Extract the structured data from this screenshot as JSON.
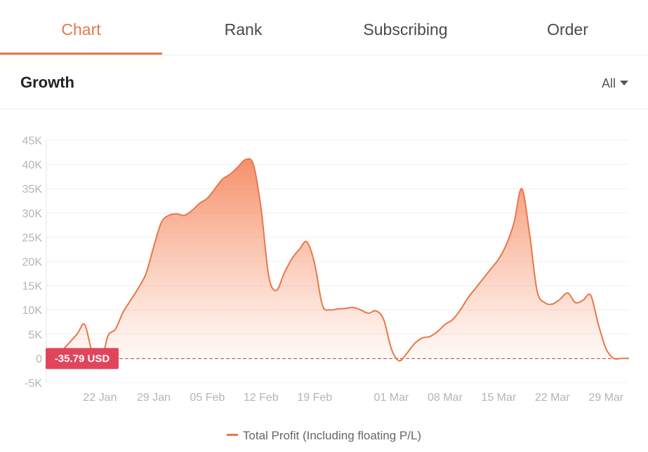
{
  "tabs": [
    {
      "label": "Chart",
      "active": true
    },
    {
      "label": "Rank",
      "active": false
    },
    {
      "label": "Subscribing",
      "active": false
    },
    {
      "label": "Order",
      "active": false
    }
  ],
  "section": {
    "title": "Growth",
    "range_selected": "All"
  },
  "colors": {
    "accent": "#e8774a",
    "badge": "#e0455c",
    "zero_line": "#c0646c"
  },
  "chart_data": {
    "type": "area",
    "title": "",
    "xlabel": "",
    "ylabel": "",
    "grid": true,
    "legend_position": "bottom",
    "ylim": [
      -5000,
      45000
    ],
    "y_ticks": [
      -5000,
      0,
      5000,
      10000,
      15000,
      20000,
      25000,
      30000,
      35000,
      40000,
      45000
    ],
    "y_tick_labels": [
      "-5K",
      "0",
      "5K",
      "10K",
      "15K",
      "20K",
      "25K",
      "30K",
      "35K",
      "40K",
      "45K"
    ],
    "xlim": [
      "2021-01-15",
      "2021-04-01"
    ],
    "x_tick_labels": [
      {
        "date": "2021-01-22",
        "label": "22 Jan"
      },
      {
        "date": "2021-01-29",
        "label": "29 Jan"
      },
      {
        "date": "2021-02-05",
        "label": "05 Feb"
      },
      {
        "date": "2021-02-12",
        "label": "12 Feb"
      },
      {
        "date": "2021-02-19",
        "label": "19 Feb"
      },
      {
        "date": "2021-03-01",
        "label": "01 Mar"
      },
      {
        "date": "2021-03-08",
        "label": "08 Mar"
      },
      {
        "date": "2021-03-15",
        "label": "15 Mar"
      },
      {
        "date": "2021-03-22",
        "label": "22 Mar"
      },
      {
        "date": "2021-03-29",
        "label": "29 Mar"
      }
    ],
    "series": [
      {
        "name": "Total Profit (Including floating P/L)",
        "points": [
          {
            "x": "2021-01-17",
            "y": 1500
          },
          {
            "x": "2021-01-19",
            "y": 5000
          },
          {
            "x": "2021-01-20",
            "y": 7000
          },
          {
            "x": "2021-01-21",
            "y": 1000
          },
          {
            "x": "2021-01-22",
            "y": -2000
          },
          {
            "x": "2021-01-23",
            "y": 4500
          },
          {
            "x": "2021-01-24",
            "y": 6000
          },
          {
            "x": "2021-01-25",
            "y": 9500
          },
          {
            "x": "2021-01-26",
            "y": 12000
          },
          {
            "x": "2021-01-27",
            "y": 14500
          },
          {
            "x": "2021-01-28",
            "y": 17500
          },
          {
            "x": "2021-01-29",
            "y": 23000
          },
          {
            "x": "2021-01-30",
            "y": 28000
          },
          {
            "x": "2021-01-31",
            "y": 29500
          },
          {
            "x": "2021-02-01",
            "y": 29800
          },
          {
            "x": "2021-02-02",
            "y": 29500
          },
          {
            "x": "2021-02-03",
            "y": 30500
          },
          {
            "x": "2021-02-04",
            "y": 32000
          },
          {
            "x": "2021-02-05",
            "y": 33000
          },
          {
            "x": "2021-02-06",
            "y": 35000
          },
          {
            "x": "2021-02-07",
            "y": 37000
          },
          {
            "x": "2021-02-08",
            "y": 38000
          },
          {
            "x": "2021-02-09",
            "y": 39500
          },
          {
            "x": "2021-02-10",
            "y": 41000
          },
          {
            "x": "2021-02-11",
            "y": 40000
          },
          {
            "x": "2021-02-12",
            "y": 31000
          },
          {
            "x": "2021-02-13",
            "y": 17000
          },
          {
            "x": "2021-02-14",
            "y": 14000
          },
          {
            "x": "2021-02-15",
            "y": 17500
          },
          {
            "x": "2021-02-16",
            "y": 20500
          },
          {
            "x": "2021-02-17",
            "y": 22500
          },
          {
            "x": "2021-02-18",
            "y": 24000
          },
          {
            "x": "2021-02-19",
            "y": 19500
          },
          {
            "x": "2021-02-20",
            "y": 11000
          },
          {
            "x": "2021-02-21",
            "y": 10000
          },
          {
            "x": "2021-02-22",
            "y": 10200
          },
          {
            "x": "2021-02-23",
            "y": 10300
          },
          {
            "x": "2021-02-24",
            "y": 10500
          },
          {
            "x": "2021-02-25",
            "y": 10000
          },
          {
            "x": "2021-02-26",
            "y": 9300
          },
          {
            "x": "2021-02-27",
            "y": 9800
          },
          {
            "x": "2021-02-28",
            "y": 8000
          },
          {
            "x": "2021-03-01",
            "y": 2000
          },
          {
            "x": "2021-03-02",
            "y": -500
          },
          {
            "x": "2021-03-03",
            "y": 1000
          },
          {
            "x": "2021-03-04",
            "y": 3000
          },
          {
            "x": "2021-03-05",
            "y": 4200
          },
          {
            "x": "2021-03-06",
            "y": 4500
          },
          {
            "x": "2021-03-07",
            "y": 5500
          },
          {
            "x": "2021-03-08",
            "y": 7000
          },
          {
            "x": "2021-03-09",
            "y": 8000
          },
          {
            "x": "2021-03-10",
            "y": 10000
          },
          {
            "x": "2021-03-11",
            "y": 12500
          },
          {
            "x": "2021-03-12",
            "y": 14500
          },
          {
            "x": "2021-03-13",
            "y": 16500
          },
          {
            "x": "2021-03-14",
            "y": 18500
          },
          {
            "x": "2021-03-15",
            "y": 20500
          },
          {
            "x": "2021-03-16",
            "y": 23500
          },
          {
            "x": "2021-03-17",
            "y": 28000
          },
          {
            "x": "2021-03-18",
            "y": 35000
          },
          {
            "x": "2021-03-19",
            "y": 26000
          },
          {
            "x": "2021-03-20",
            "y": 14000
          },
          {
            "x": "2021-03-21",
            "y": 11500
          },
          {
            "x": "2021-03-22",
            "y": 11200
          },
          {
            "x": "2021-03-23",
            "y": 12200
          },
          {
            "x": "2021-03-24",
            "y": 13500
          },
          {
            "x": "2021-03-25",
            "y": 11500
          },
          {
            "x": "2021-03-26",
            "y": 12000
          },
          {
            "x": "2021-03-27",
            "y": 13000
          },
          {
            "x": "2021-03-28",
            "y": 7000
          },
          {
            "x": "2021-03-29",
            "y": 2000
          },
          {
            "x": "2021-03-30",
            "y": 0
          },
          {
            "x": "2021-03-31",
            "y": 0
          },
          {
            "x": "2021-04-01",
            "y": 0
          }
        ]
      }
    ],
    "annotations": [
      {
        "type": "reference-line",
        "y": -35.79,
        "label": "-35.79 USD"
      }
    ]
  }
}
